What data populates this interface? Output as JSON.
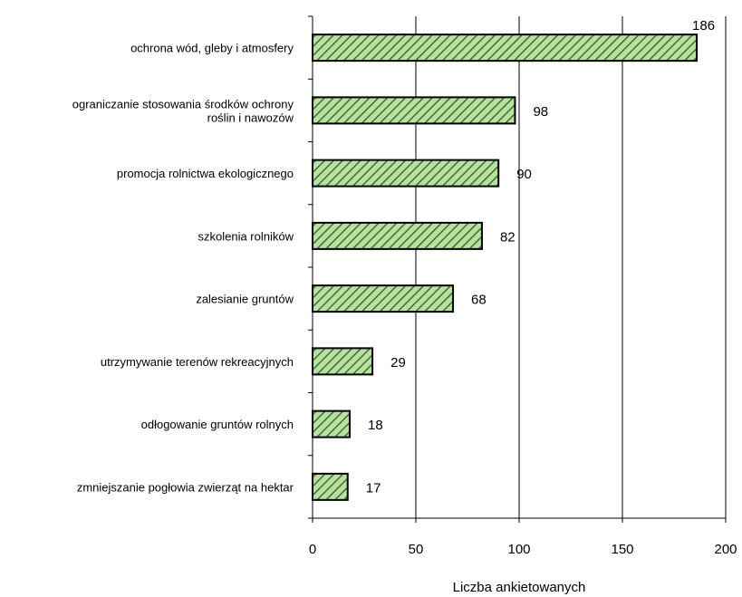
{
  "chart_data": {
    "type": "bar",
    "orientation": "horizontal",
    "categories": [
      [
        "ochrona wód, gleby i atmosfery"
      ],
      [
        "ograniczanie stosowania środków ochrony",
        "roślin i nawozów"
      ],
      [
        "promocja rolnictwa ekologicznego"
      ],
      [
        "szkolenia rolników"
      ],
      [
        "zalesianie gruntów"
      ],
      [
        "utrzymywanie terenów rekreacyjnych"
      ],
      [
        "odłogowanie gruntów rolnych"
      ],
      [
        "zmniejszanie pogłowia zwierząt na hektar"
      ]
    ],
    "values": [
      186,
      98,
      90,
      82,
      68,
      29,
      18,
      17
    ],
    "xlabel": "Liczba ankietowanych",
    "ylabel": "",
    "xlim": [
      0,
      200
    ],
    "xticks": [
      0,
      50,
      100,
      150,
      200
    ],
    "grid": "vertical",
    "bar_fill": "hatched",
    "colors": {
      "bar_fill": "#b8e0a0",
      "hatch": "#2e5d1f",
      "outline": "#000000",
      "axis": "#000000",
      "grid": "#000000"
    }
  }
}
